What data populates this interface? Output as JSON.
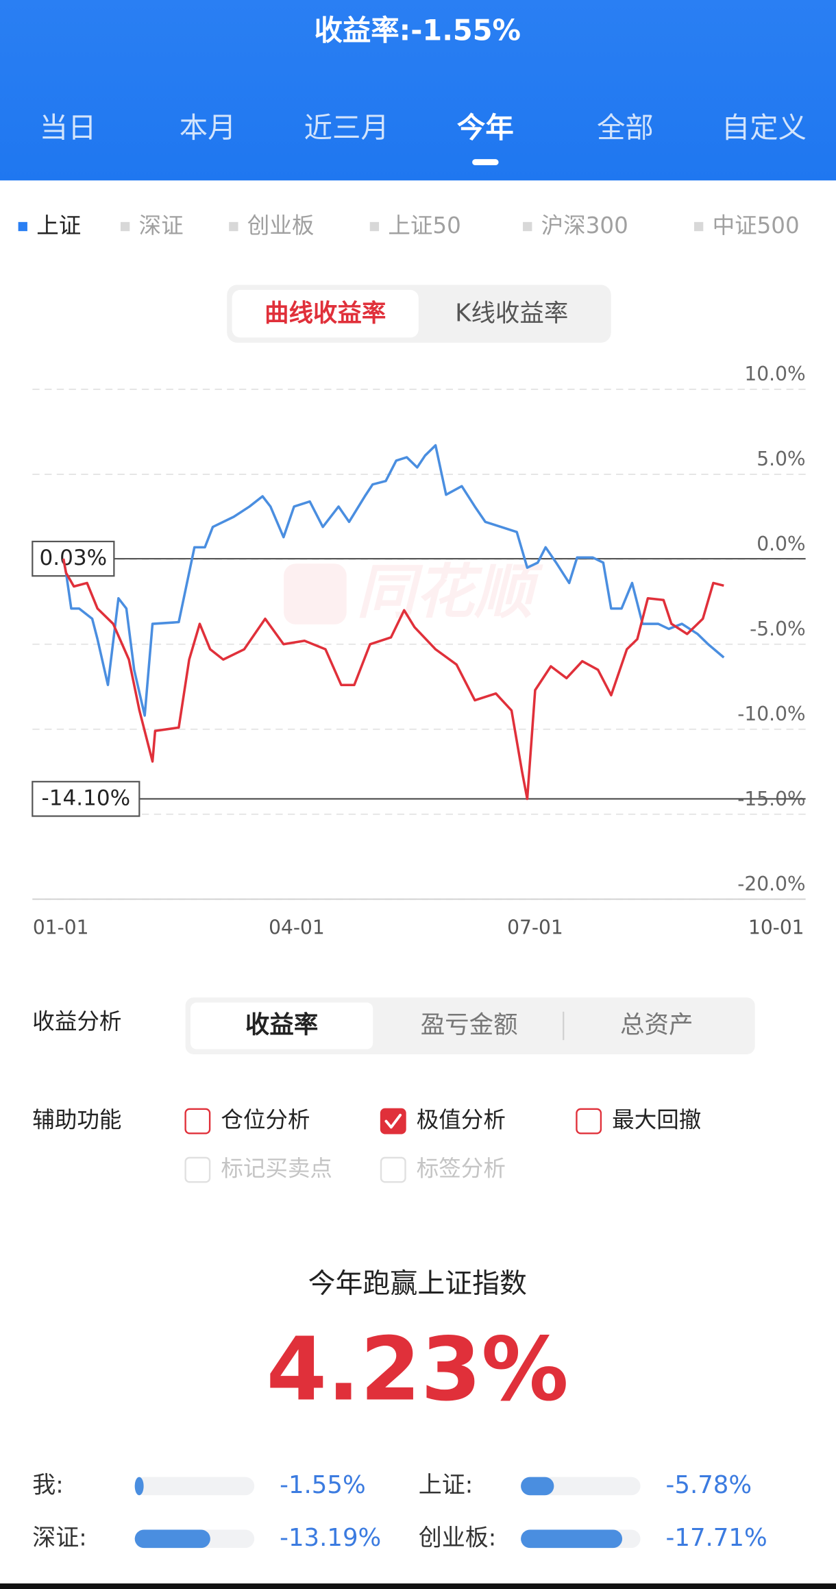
{
  "header": {
    "title": "收益率:-1.55%"
  },
  "period_tabs": {
    "items": [
      "当日",
      "本月",
      "近三月",
      "今年",
      "全部",
      "自定义"
    ],
    "active": 3
  },
  "index_tabs": {
    "items": [
      "上证",
      "深证",
      "创业板",
      "上证50",
      "沪深300",
      "中证500"
    ],
    "active": 0
  },
  "chart_mode_tabs": {
    "items": [
      "曲线收益率",
      "K线收益率"
    ],
    "active": 0
  },
  "chart_data": {
    "type": "line",
    "watermark": "同花顺",
    "xlim": [
      "01-01",
      "10-01"
    ],
    "xticks": [
      "01-01",
      "04-01",
      "07-01",
      "10-01"
    ],
    "ylim": [
      -20,
      10
    ],
    "yticks": [
      {
        "value": 10,
        "label": "10.0%"
      },
      {
        "value": 5,
        "label": "5.0%"
      },
      {
        "value": 0,
        "label": "0.0%"
      },
      {
        "value": -5,
        "label": "-5.0%"
      },
      {
        "value": -10,
        "label": "-10.0%"
      },
      {
        "value": -15,
        "label": "-15.0%"
      },
      {
        "value": -20,
        "label": "-20.0%"
      }
    ],
    "grid": true,
    "extremes": [
      {
        "value": 0.03,
        "label": "0.03%"
      },
      {
        "value": -14.1,
        "label": "-14.10%"
      }
    ],
    "series": [
      {
        "color": "#4a8ee0",
        "x": [
          "01-02",
          "01-03",
          "01-05",
          "01-08",
          "01-13",
          "01-15",
          "01-19",
          "01-23",
          "01-26",
          "01-29",
          "02-02",
          "02-05",
          "02-15",
          "02-21",
          "02-25",
          "02-28",
          "03-08",
          "03-14",
          "03-19",
          "03-22",
          "03-27",
          "03-31",
          "04-06",
          "04-11",
          "04-17",
          "04-21",
          "04-27",
          "04-30",
          "05-05",
          "05-09",
          "05-13",
          "05-17",
          "05-20",
          "05-24",
          "05-28",
          "06-03",
          "06-08",
          "06-12",
          "06-18",
          "06-24",
          "06-28",
          "07-02",
          "07-05",
          "07-09",
          "07-14",
          "07-17",
          "07-23",
          "07-27",
          "07-30",
          "08-03",
          "08-07",
          "08-11",
          "08-17",
          "08-21",
          "08-26",
          "09-01",
          "09-05",
          "09-11"
        ],
        "values": [
          0,
          -0.8,
          -2.9,
          -2.9,
          -3.5,
          -4.7,
          -7.4,
          -2.3,
          -2.9,
          -6.5,
          -9.2,
          -3.8,
          -3.7,
          0.7,
          0.7,
          1.9,
          2.5,
          3.1,
          3.7,
          3.1,
          1.3,
          3.1,
          3.4,
          1.9,
          3.1,
          2.2,
          3.7,
          4.4,
          4.6,
          5.8,
          6.0,
          5.4,
          6.1,
          6.7,
          3.8,
          4.3,
          3.1,
          2.2,
          1.9,
          1.6,
          -0.5,
          -0.2,
          0.7,
          -0.2,
          -1.4,
          0.1,
          0.1,
          -0.2,
          -2.9,
          -2.9,
          -1.4,
          -3.8,
          -3.8,
          -4.1,
          -3.8,
          -4.4,
          -5.0,
          -5.78
        ]
      },
      {
        "color": "#e0303a",
        "x": [
          "01-02",
          "01-03",
          "01-06",
          "01-11",
          "01-15",
          "01-21",
          "01-27",
          "01-31",
          "02-05",
          "02-06",
          "02-15",
          "02-19",
          "02-23",
          "02-27",
          "03-04",
          "03-12",
          "03-20",
          "03-27",
          "04-04",
          "04-12",
          "04-18",
          "04-23",
          "04-29",
          "05-07",
          "05-12",
          "05-16",
          "05-24",
          "06-01",
          "06-08",
          "06-16",
          "06-22",
          "06-26",
          "06-28",
          "07-01",
          "07-07",
          "07-13",
          "07-19",
          "07-25",
          "07-30",
          "08-05",
          "08-09",
          "08-13",
          "08-19",
          "08-22",
          "08-28",
          "09-03",
          "09-07",
          "09-11"
        ],
        "values": [
          0.03,
          -0.8,
          -1.6,
          -1.4,
          -2.9,
          -3.8,
          -5.9,
          -8.9,
          -11.9,
          -10.1,
          -9.9,
          -5.9,
          -3.8,
          -5.3,
          -5.9,
          -5.3,
          -3.5,
          -5.0,
          -4.8,
          -5.3,
          -7.4,
          -7.4,
          -5.0,
          -4.6,
          -3.0,
          -4.0,
          -5.3,
          -6.2,
          -8.3,
          -7.9,
          -8.9,
          -12.5,
          -14.1,
          -7.7,
          -6.3,
          -7.0,
          -6.0,
          -6.5,
          -8.0,
          -5.3,
          -4.7,
          -2.3,
          -2.4,
          -3.8,
          -4.4,
          -3.5,
          -1.4,
          -1.55
        ]
      }
    ]
  },
  "analysis": {
    "label": "收益分析",
    "tabs": [
      "收益率",
      "盈亏金额",
      "总资产"
    ],
    "active": 0
  },
  "aux": {
    "label": "辅助功能",
    "options": [
      {
        "text": "仓位分析",
        "checked": false,
        "enabled": true
      },
      {
        "text": "极值分析",
        "checked": true,
        "enabled": true
      },
      {
        "text": "最大回撤",
        "checked": false,
        "enabled": true
      },
      {
        "text": "标记买卖点",
        "checked": false,
        "enabled": false
      },
      {
        "text": "标签分析",
        "checked": false,
        "enabled": false
      }
    ]
  },
  "comparison": {
    "title": "今年跑赢上证指数",
    "headline": "4.23%",
    "items": [
      {
        "label": "我:",
        "value": -1.55,
        "value_label": "-1.55%"
      },
      {
        "label": "上证:",
        "value": -5.78,
        "value_label": "-5.78%"
      },
      {
        "label": "深证:",
        "value": -13.19,
        "value_label": "-13.19%"
      },
      {
        "label": "创业板:",
        "value": -17.71,
        "value_label": "-17.71%"
      }
    ]
  }
}
